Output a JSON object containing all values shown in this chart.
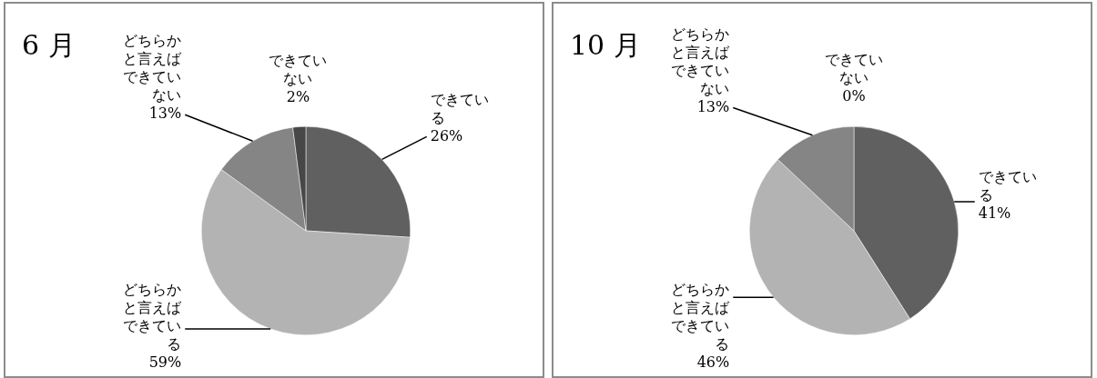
{
  "chart_data": [
    {
      "type": "pie",
      "title": "6 月",
      "categories": [
        "できている",
        "どちらかと言えばできている",
        "どちらかと言えばできていない",
        "できていない"
      ],
      "values": [
        26,
        59,
        13,
        2
      ],
      "value_labels": [
        "26%",
        "59%",
        "13%",
        "2%"
      ],
      "colors": [
        "#606060",
        "#b3b3b3",
        "#858585",
        "#474747"
      ],
      "legend": false
    },
    {
      "type": "pie",
      "title": "10 月",
      "categories": [
        "できている",
        "どちらかと言えばできている",
        "どちらかと言えばできていない",
        "できていない"
      ],
      "values": [
        41,
        46,
        13,
        0
      ],
      "value_labels": [
        "41%",
        "46%",
        "13%",
        "0%"
      ],
      "colors": [
        "#606060",
        "#b3b3b3",
        "#858585",
        "#474747"
      ],
      "legend": false
    }
  ]
}
